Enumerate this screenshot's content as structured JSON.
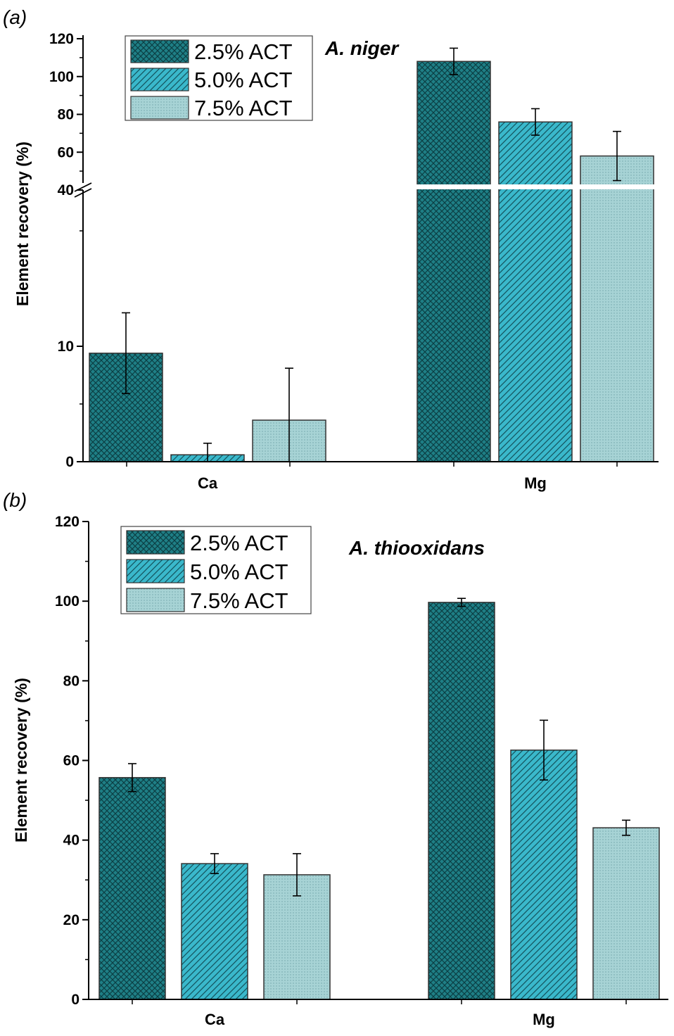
{
  "colors": {
    "dark": "#1f7f86",
    "mid": "#3ab8cb",
    "light": "#a7d3d5",
    "axis": "#000000"
  },
  "chart_data": [
    {
      "panel": "(a)",
      "type": "bar",
      "title": "A. niger",
      "ylabel": "Element recovery (%)",
      "xlabel": "",
      "categories": [
        "Ca",
        "Mg"
      ],
      "series": [
        {
          "name": "2.5% ACT",
          "values": [
            9.4,
            108
          ],
          "errors": [
            3.5,
            7
          ]
        },
        {
          "name": "5.0% ACT",
          "values": [
            0.6,
            76
          ],
          "errors": [
            1.0,
            7
          ]
        },
        {
          "name": "7.5% ACT",
          "values": [
            3.6,
            58
          ],
          "errors": [
            4.5,
            13
          ]
        }
      ],
      "axis_break": {
        "lower_range": [
          0,
          40
        ],
        "upper_range": [
          40,
          120
        ]
      },
      "yticks": [
        "0",
        "10",
        "40",
        "60",
        "80",
        "100",
        "120"
      ],
      "legend": "top-left"
    },
    {
      "panel": "(b)",
      "type": "bar",
      "title": "A. thiooxidans",
      "ylabel": "Element recovery (%)",
      "xlabel": "",
      "categories": [
        "Ca",
        "Mg"
      ],
      "series": [
        {
          "name": "2.5% ACT",
          "values": [
            55.7,
            99.7
          ],
          "errors": [
            3.5,
            1.0
          ]
        },
        {
          "name": "5.0% ACT",
          "values": [
            34.1,
            62.6
          ],
          "errors": [
            2.5,
            7.5
          ]
        },
        {
          "name": "7.5% ACT",
          "values": [
            31.3,
            43.1
          ],
          "errors": [
            5.3,
            1.9
          ]
        }
      ],
      "ylim": [
        0,
        120
      ],
      "yticks": [
        "0",
        "20",
        "40",
        "60",
        "80",
        "100",
        "120"
      ],
      "legend": "top-left"
    }
  ]
}
